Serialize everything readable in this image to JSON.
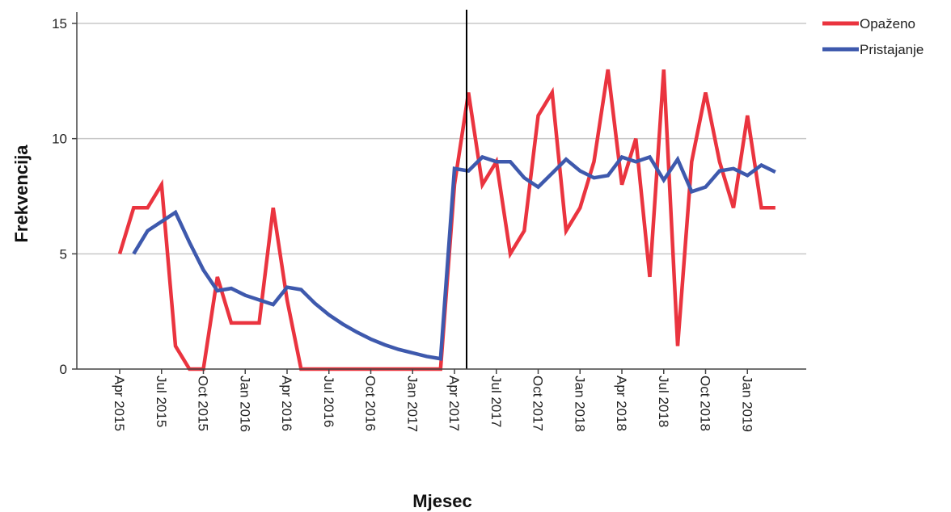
{
  "chart_data": {
    "type": "line",
    "title": "",
    "xlabel": "Mjesec",
    "ylabel": "Frekvencija",
    "ylim": [
      0,
      15
    ],
    "yticks": [
      0,
      5,
      10,
      15
    ],
    "grid": "horizontal",
    "legend_position": "top-right",
    "intervention": "2017-04",
    "x_ticks": [
      {
        "date": "2015-04",
        "label": "Apr 2015"
      },
      {
        "date": "2015-07",
        "label": "Jul 2015"
      },
      {
        "date": "2015-10",
        "label": "Oct 2015"
      },
      {
        "date": "2016-01",
        "label": "Jan 2016"
      },
      {
        "date": "2016-04",
        "label": "Apr 2016"
      },
      {
        "date": "2016-07",
        "label": "Jul 2016"
      },
      {
        "date": "2016-10",
        "label": "Oct 2016"
      },
      {
        "date": "2017-01",
        "label": "Jan 2017"
      },
      {
        "date": "2017-04",
        "label": "Apr 2017"
      },
      {
        "date": "2017-07",
        "label": "Jul 2017"
      },
      {
        "date": "2017-10",
        "label": "Oct 2017"
      },
      {
        "date": "2018-01",
        "label": "Jan 2018"
      },
      {
        "date": "2018-04",
        "label": "Apr 2018"
      },
      {
        "date": "2018-07",
        "label": "Jul 2018"
      },
      {
        "date": "2018-10",
        "label": "Oct 2018"
      },
      {
        "date": "2019-01",
        "label": "Jan 2019"
      }
    ],
    "series": [
      {
        "name": "Opaženo",
        "color": "#ea343f",
        "points": [
          [
            "2015-04",
            5
          ],
          [
            "2015-05",
            7
          ],
          [
            "2015-06",
            7
          ],
          [
            "2015-07",
            8
          ],
          [
            "2015-08",
            1
          ],
          [
            "2015-09",
            0
          ],
          [
            "2015-10",
            0
          ],
          [
            "2015-11",
            4
          ],
          [
            "2015-12",
            2
          ],
          [
            "2016-01",
            2
          ],
          [
            "2016-02",
            2
          ],
          [
            "2016-03",
            7
          ],
          [
            "2016-04",
            3
          ],
          [
            "2016-05",
            0
          ],
          [
            "2016-06",
            0
          ],
          [
            "2016-07",
            0
          ],
          [
            "2016-08",
            0
          ],
          [
            "2016-09",
            0
          ],
          [
            "2016-10",
            0
          ],
          [
            "2016-11",
            0
          ],
          [
            "2016-12",
            0
          ],
          [
            "2017-01",
            0
          ],
          [
            "2017-02",
            0
          ],
          [
            "2017-03",
            0
          ],
          [
            "2017-04",
            8
          ],
          [
            "2017-05",
            12
          ],
          [
            "2017-06",
            8
          ],
          [
            "2017-07",
            9
          ],
          [
            "2017-08",
            5
          ],
          [
            "2017-09",
            6
          ],
          [
            "2017-10",
            11
          ],
          [
            "2017-11",
            12
          ],
          [
            "2017-12",
            6
          ],
          [
            "2018-01",
            7
          ],
          [
            "2018-02",
            9
          ],
          [
            "2018-03",
            13
          ],
          [
            "2018-04",
            8
          ],
          [
            "2018-05",
            10
          ],
          [
            "2018-06",
            4
          ],
          [
            "2018-07",
            13
          ],
          [
            "2018-08",
            1
          ],
          [
            "2018-09",
            9
          ],
          [
            "2018-10",
            12
          ],
          [
            "2018-11",
            9
          ],
          [
            "2018-12",
            7
          ],
          [
            "2019-01",
            11
          ],
          [
            "2019-02",
            7
          ],
          [
            "2019-03",
            7
          ]
        ]
      },
      {
        "name": "Pristajanje",
        "color": "#3e59ad",
        "points": [
          [
            "2015-05",
            5.0
          ],
          [
            "2015-06",
            6.0
          ],
          [
            "2015-07",
            6.4
          ],
          [
            "2015-08",
            6.8
          ],
          [
            "2015-09",
            5.5
          ],
          [
            "2015-10",
            4.3
          ],
          [
            "2015-11",
            3.4
          ],
          [
            "2015-12",
            3.5
          ],
          [
            "2016-01",
            3.2
          ],
          [
            "2016-02",
            3.0
          ],
          [
            "2016-03",
            2.8
          ],
          [
            "2016-04",
            3.55
          ],
          [
            "2016-05",
            3.45
          ],
          [
            "2016-06",
            2.85
          ],
          [
            "2016-07",
            2.35
          ],
          [
            "2016-08",
            1.95
          ],
          [
            "2016-09",
            1.6
          ],
          [
            "2016-10",
            1.3
          ],
          [
            "2016-11",
            1.05
          ],
          [
            "2016-12",
            0.85
          ],
          [
            "2017-01",
            0.7
          ],
          [
            "2017-02",
            0.55
          ],
          [
            "2017-03",
            0.45
          ],
          [
            "2017-04",
            8.7
          ],
          [
            "2017-05",
            8.6
          ],
          [
            "2017-06",
            9.2
          ],
          [
            "2017-07",
            9.0
          ],
          [
            "2017-08",
            9.0
          ],
          [
            "2017-09",
            8.3
          ],
          [
            "2017-10",
            7.9
          ],
          [
            "2017-11",
            8.5
          ],
          [
            "2017-12",
            9.1
          ],
          [
            "2018-01",
            8.6
          ],
          [
            "2018-02",
            8.3
          ],
          [
            "2018-03",
            8.4
          ],
          [
            "2018-04",
            9.2
          ],
          [
            "2018-05",
            9.0
          ],
          [
            "2018-06",
            9.2
          ],
          [
            "2018-07",
            8.2
          ],
          [
            "2018-08",
            9.1
          ],
          [
            "2018-09",
            7.7
          ],
          [
            "2018-10",
            7.9
          ],
          [
            "2018-11",
            8.6
          ],
          [
            "2018-12",
            8.7
          ],
          [
            "2019-01",
            8.4
          ],
          [
            "2019-02",
            8.85
          ],
          [
            "2019-03",
            8.55
          ]
        ]
      }
    ]
  }
}
